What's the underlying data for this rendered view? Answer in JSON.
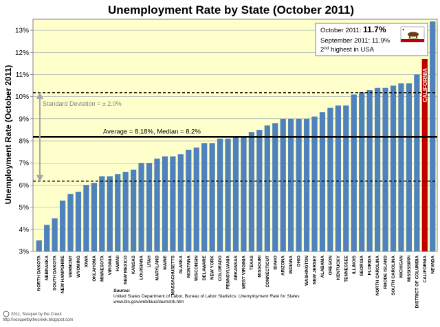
{
  "chart_data": {
    "type": "bar",
    "title": "Unemployment Rate by State (October 2011)",
    "ylabel": "Unemployment Rate (October 2011)",
    "xlabel": "",
    "ylim": [
      3,
      13.5
    ],
    "yticks": [
      "3%",
      "4%",
      "5%",
      "6%",
      "7%",
      "8%",
      "9%",
      "10%",
      "11%",
      "12%",
      "13%"
    ],
    "categories": [
      "NORTH DAKOTA",
      "NEBRASKA",
      "SOUTH DAKOTA",
      "NEW HAMPSHIRE",
      "VERMONT",
      "WYOMING",
      "IOWA",
      "OKLAHOMA",
      "MINNESOTA",
      "VIRGINIA",
      "HAWAII",
      "NEW MEXICO",
      "KANSAS",
      "LOUISIANA",
      "UTAH",
      "MARYLAND",
      "MAINE",
      "MASSACHUSETTS",
      "ALASKA",
      "MONTANA",
      "WISCONSIN",
      "DELAWARE",
      "NEW YORK",
      "COLORADO",
      "PENNSYLVANIA",
      "ARKANSAS",
      "WEST VIRGINIA",
      "TEXAS",
      "MISSOURI",
      "CONNECTICUT",
      "IDAHO",
      "ARIZONA",
      "INDIANA",
      "OHIO",
      "WASHINGTON",
      "NEW JERSEY",
      "ALABAMA",
      "OREGON",
      "KENTUCKY",
      "TENNESSEE",
      "ILLINOIS",
      "GEORGIA",
      "FLORIDA",
      "NORTH CAROLINA",
      "RHODE ISLAND",
      "SOUTH CAROLINA",
      "MICHIGAN",
      "MISSISSIPPI",
      "DISTRICT OF COLUMBIA",
      "CALIFORNIA",
      "NEVADA"
    ],
    "values": [
      3.5,
      4.2,
      4.5,
      5.3,
      5.6,
      5.7,
      6.0,
      6.1,
      6.4,
      6.4,
      6.5,
      6.6,
      6.7,
      7.0,
      7.0,
      7.2,
      7.3,
      7.3,
      7.4,
      7.6,
      7.7,
      7.9,
      7.9,
      8.1,
      8.1,
      8.2,
      8.2,
      8.4,
      8.5,
      8.7,
      8.8,
      9.0,
      9.0,
      9.0,
      9.0,
      9.1,
      9.3,
      9.5,
      9.6,
      9.6,
      10.1,
      10.2,
      10.3,
      10.4,
      10.4,
      10.5,
      10.6,
      10.6,
      11.0,
      11.7,
      13.4
    ],
    "highlight": "CALIFORNIA",
    "average": 8.18,
    "median": 8.2,
    "std_band": [
      6.18,
      10.18
    ],
    "colors": {
      "bar": "#4f81bd",
      "highlight": "#c00000",
      "plot_bg": "#ffffcc"
    }
  },
  "annotations": {
    "average_label": "Average = 8.18%, Median = 8.2%",
    "stddev_label": "Standard Deviation = ± 2.0%",
    "ca_bar_label": "CALIFORNIA",
    "callout": {
      "line1_prefix": "October 2011:",
      "line1_value": "11.7%",
      "line2": "September 2011: 11.9%",
      "line3_num": "2",
      "line3_sup": "nd",
      "line3_rest": "highest in USA"
    }
  },
  "source": {
    "label": "Source:",
    "line1_plain": "United States Department of Labor, Bureau of Labor Statistics:",
    "line1_italic": "Unemployment Rate for States",
    "line2": "www.bls.gov/web/laus/laumstrk.htm"
  },
  "copyright": {
    "line1": "2011, Sosquel by the Creek",
    "line2": "http://sosquelbythecreek.blogspot.com"
  }
}
